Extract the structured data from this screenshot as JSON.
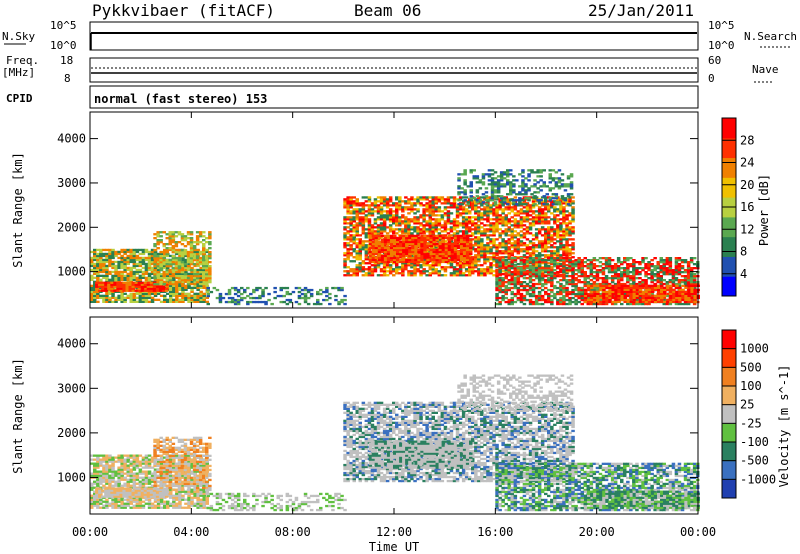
{
  "header": {
    "radar": "Pykkvibaer (fitACF)",
    "beam": "Beam 06",
    "date": "25/Jan/2011"
  },
  "status": {
    "nsky_label": "N.Sky",
    "nsky_top": "10^5",
    "nsky_bottom": "10^0",
    "nsky_right_top": "10^5",
    "nsky_right_bottom": "10^0",
    "nsearch_label": "N.Search",
    "freq_label": "Freq.",
    "freq_unit": "[MHz]",
    "freq_top": "18",
    "freq_bottom": "8",
    "nave_top": "60",
    "nave_bottom": "0",
    "nave_label": "Nave",
    "cpid_label": "CPID",
    "cpid_text": "normal (fast stereo) 153"
  },
  "chart_data": [
    {
      "type": "heatmap",
      "name": "power",
      "ylabel": "Slant Range [km]",
      "y_ticks": [
        1000,
        2000,
        3000,
        4000
      ],
      "ylim": [
        180,
        4600
      ],
      "xlim_hours": [
        0,
        24
      ],
      "colorbar_label": "Power [dB]",
      "colorbar_ticks": [
        "28",
        "24",
        "20",
        "16",
        "12",
        "8",
        "4"
      ],
      "colorbar_colors": [
        "#0000ff",
        "#2050b0",
        "#2a8050",
        "#5aa850",
        "#b8d040",
        "#f0c000",
        "#f08000",
        "#ff3000",
        "#ff0000"
      ]
    },
    {
      "type": "heatmap",
      "name": "velocity",
      "ylabel": "Slant Range [km]",
      "y_ticks": [
        1000,
        2000,
        3000,
        4000
      ],
      "ylim": [
        180,
        4600
      ],
      "xlim_hours": [
        0,
        24
      ],
      "x_ticks": [
        "00:00",
        "04:00",
        "08:00",
        "12:00",
        "16:00",
        "20:00",
        "00:00"
      ],
      "xlabel": "Time UT",
      "colorbar_label": "Velocity [m s^-1]",
      "colorbar_ticks": [
        "1000",
        "500",
        "100",
        "25",
        "-25",
        "-100",
        "-500",
        "-1000"
      ],
      "colorbar_colors": [
        "#2040b0",
        "#3a70c0",
        "#2a8060",
        "#60c040",
        "#c0c0c0",
        "#f0b060",
        "#f08020",
        "#ff4000",
        "#ff0000"
      ]
    }
  ]
}
